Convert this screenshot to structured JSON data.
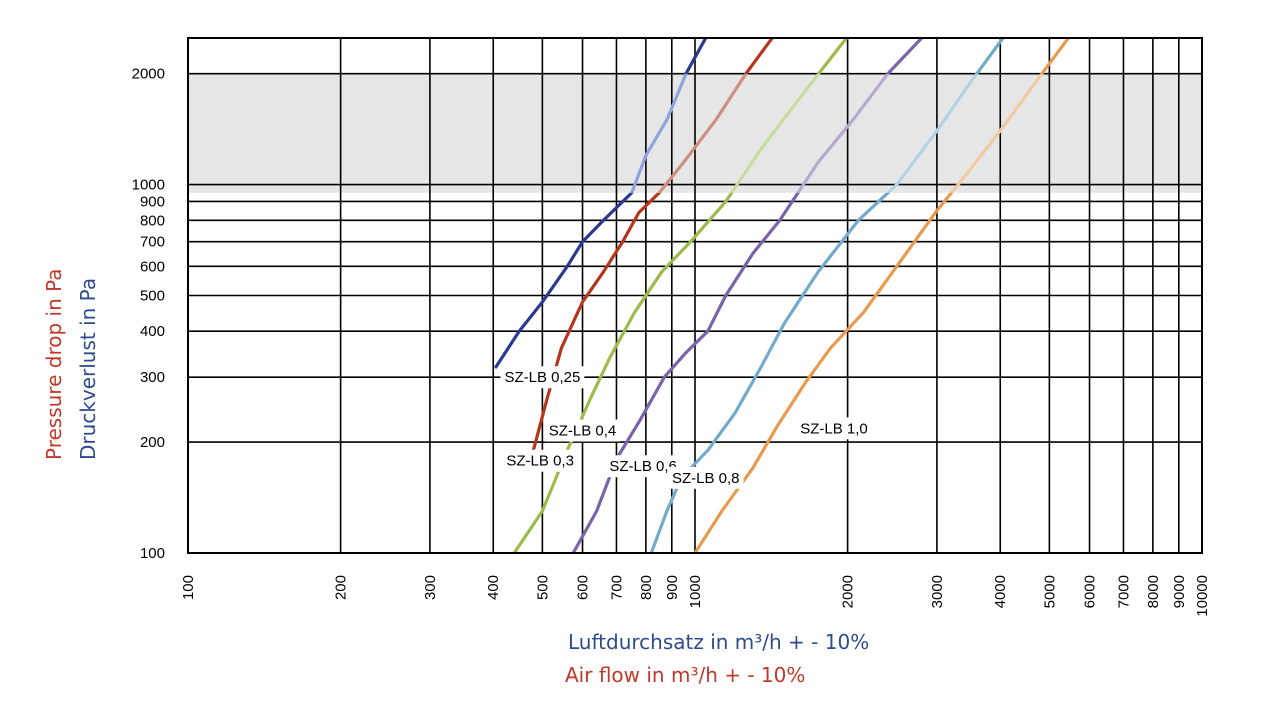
{
  "chart_data": {
    "type": "line",
    "x_scale": "log",
    "y_scale": "log",
    "xlim": [
      100,
      10000
    ],
    "ylim": [
      100,
      2500
    ],
    "x_ticks": [
      100,
      200,
      300,
      400,
      500,
      600,
      700,
      800,
      900,
      1000,
      2000,
      3000,
      4000,
      5000,
      6000,
      7000,
      8000,
      9000,
      10000
    ],
    "x_tick_labels": [
      "100",
      "200",
      "300",
      "400",
      "500",
      "600",
      "700",
      "800",
      "900",
      "1000",
      "2000",
      "3000",
      "4000",
      "5000",
      "6000",
      "7000",
      "8000",
      "9000",
      "10000"
    ],
    "y_ticks": [
      100,
      200,
      300,
      400,
      500,
      600,
      700,
      800,
      900,
      1000,
      2000
    ],
    "y_tick_labels": [
      "100",
      "200",
      "300",
      "400",
      "500",
      "600",
      "700",
      "800",
      "900",
      "1000",
      "2000"
    ],
    "shaded_band": {
      "y_from": 950,
      "y_to": 2000,
      "color": "#e6e6e6"
    },
    "grid": true,
    "xlabel_de": "Luftdurchsatz in m³/h  + - 10%",
    "xlabel_en": "Air flow in m³/h  + - 10%",
    "ylabel_en": "Pressure drop in Pa",
    "ylabel_de": "Druckverlust in Pa",
    "series": [
      {
        "name": "SZ-LB 0,25",
        "color": "#2b3990",
        "highlight_color": "#8fa3dd",
        "label_anchor": [
          500,
          300
        ],
        "points": [
          [
            405,
            320
          ],
          [
            450,
            400
          ],
          [
            500,
            480
          ],
          [
            560,
            600
          ],
          [
            600,
            700
          ],
          [
            660,
            800
          ],
          [
            750,
            950
          ],
          [
            800,
            1200
          ],
          [
            880,
            1500
          ],
          [
            960,
            2000
          ],
          [
            1050,
            2500
          ]
        ]
      },
      {
        "name": "SZ-LB 0,3",
        "color": "#b5361d",
        "highlight_color": "#cc8f82",
        "label_anchor": [
          495,
          178
        ],
        "points": [
          [
            475,
            180
          ],
          [
            510,
            260
          ],
          [
            545,
            360
          ],
          [
            600,
            480
          ],
          [
            660,
            580
          ],
          [
            720,
            700
          ],
          [
            775,
            840
          ],
          [
            850,
            950
          ],
          [
            950,
            1150
          ],
          [
            1100,
            1500
          ],
          [
            1260,
            2000
          ],
          [
            1420,
            2500
          ]
        ]
      },
      {
        "name": "SZ-LB 0,4",
        "color": "#9dbb4b",
        "highlight_color": "#c7dba0",
        "label_anchor": [
          600,
          215
        ],
        "points": [
          [
            440,
            100
          ],
          [
            500,
            130
          ],
          [
            560,
            190
          ],
          [
            620,
            260
          ],
          [
            680,
            340
          ],
          [
            760,
            450
          ],
          [
            860,
            580
          ],
          [
            980,
            700
          ],
          [
            1150,
            900
          ],
          [
            1350,
            1250
          ],
          [
            1600,
            1700
          ],
          [
            1850,
            2200
          ],
          [
            1990,
            2500
          ]
        ]
      },
      {
        "name": "SZ-LB 0,6",
        "color": "#7a63a8",
        "highlight_color": "#b7a9d0",
        "label_anchor": [
          790,
          172
        ],
        "points": [
          [
            575,
            100
          ],
          [
            640,
            130
          ],
          [
            700,
            180
          ],
          [
            780,
            230
          ],
          [
            870,
            300
          ],
          [
            960,
            350
          ],
          [
            1060,
            400
          ],
          [
            1150,
            500
          ],
          [
            1300,
            650
          ],
          [
            1470,
            800
          ],
          [
            1750,
            1150
          ],
          [
            2050,
            1500
          ],
          [
            2400,
            2000
          ],
          [
            2800,
            2500
          ]
        ]
      },
      {
        "name": "SZ-LB 0,8",
        "color": "#72aac9",
        "highlight_color": "#b3d3e5",
        "label_anchor": [
          1050,
          160
        ],
        "points": [
          [
            820,
            100
          ],
          [
            880,
            130
          ],
          [
            940,
            160
          ],
          [
            1060,
            190
          ],
          [
            1200,
            240
          ],
          [
            1350,
            320
          ],
          [
            1500,
            420
          ],
          [
            1750,
            580
          ],
          [
            2100,
            800
          ],
          [
            2500,
            1000
          ],
          [
            3000,
            1400
          ],
          [
            3500,
            1900
          ],
          [
            4050,
            2500
          ]
        ]
      },
      {
        "name": "SZ-LB 1,0",
        "color": "#e89b4e",
        "highlight_color": "#f0caa0",
        "label_anchor": [
          1880,
          218
        ],
        "points": [
          [
            1000,
            100
          ],
          [
            1130,
            130
          ],
          [
            1300,
            170
          ],
          [
            1450,
            220
          ],
          [
            1650,
            290
          ],
          [
            1850,
            360
          ],
          [
            2150,
            450
          ],
          [
            2500,
            600
          ],
          [
            3000,
            850
          ],
          [
            3400,
            1050
          ],
          [
            4000,
            1400
          ],
          [
            4700,
            1900
          ],
          [
            5450,
            2500
          ]
        ]
      }
    ]
  }
}
